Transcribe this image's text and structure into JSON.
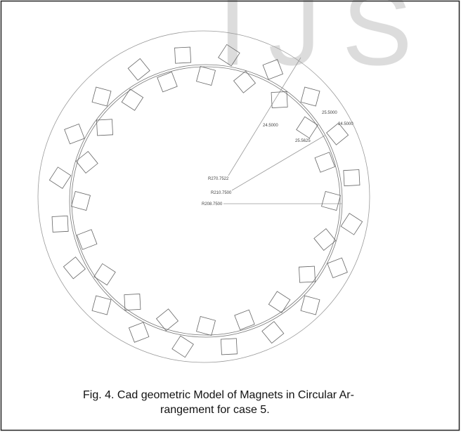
{
  "watermark": "IJS",
  "figure": {
    "dimensions": [
      "R270.7522",
      "R210.7500",
      "R208.7500",
      "25.5000",
      "24.5000",
      "24.5000",
      "25.5625"
    ],
    "caption": [
      "Fig. 4.  Cad geometric Model of Magnets in Circular Ar-",
      "rangement for case 5."
    ]
  }
}
